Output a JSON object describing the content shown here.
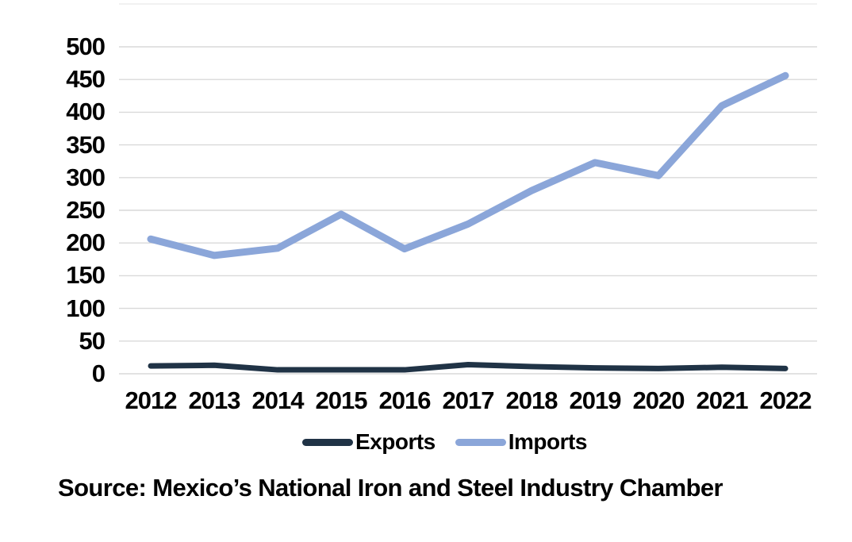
{
  "chart_data": {
    "type": "line",
    "title": "",
    "xlabel": "",
    "ylabel": "",
    "categories": [
      "2012",
      "2013",
      "2014",
      "2015",
      "2016",
      "2017",
      "2018",
      "2019",
      "2020",
      "2021",
      "2022"
    ],
    "series": [
      {
        "name": "Exports",
        "color": "#203346",
        "values": [
          12,
          13,
          6,
          6,
          6,
          14,
          11,
          9,
          8,
          10,
          8
        ]
      },
      {
        "name": "Imports",
        "color": "#8ba6d9",
        "values": [
          206,
          181,
          192,
          244,
          191,
          229,
          280,
          323,
          303,
          410,
          456
        ]
      }
    ],
    "ylim": [
      0,
      500
    ],
    "yticks": [
      0,
      50,
      100,
      150,
      200,
      250,
      300,
      350,
      400,
      450,
      500
    ],
    "grid": "horizontal",
    "legend_position": "bottom-center"
  },
  "colors": {
    "grid": "#d9d9d9",
    "top_border": "#e3e3e3",
    "text": "#000000",
    "background": "#ffffff"
  },
  "source_note": "Source: Mexico’s National Iron and Steel Industry Chamber"
}
